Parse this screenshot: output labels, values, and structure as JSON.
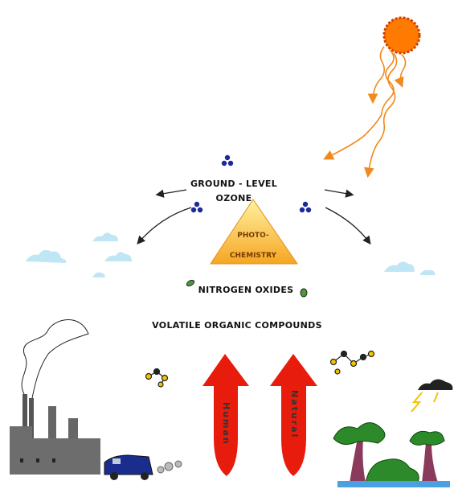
{
  "ozone": {
    "lines": [
      "GROUND - LEVEL",
      "OZONE"
    ]
  },
  "photochemistry": {
    "lines": [
      "PHOTO-",
      "CHEMISTRY"
    ]
  },
  "nitrogen_oxides": "NITROGEN OXIDES",
  "vocs": "VOLATILE ORGANIC COMPOUNDS",
  "sources": {
    "human": "Human",
    "natural": "Natural"
  }
}
